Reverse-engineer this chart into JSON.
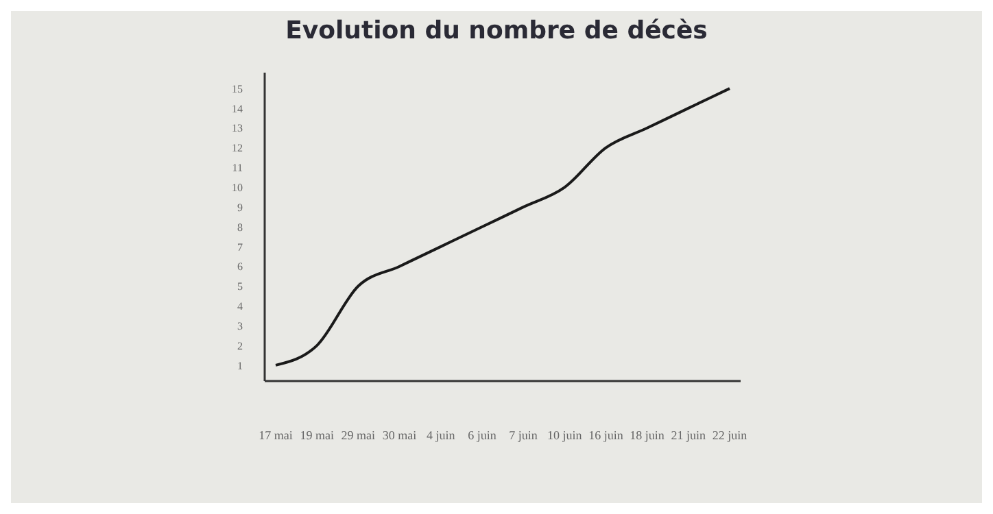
{
  "chart_data": {
    "type": "line",
    "title": "Evolution du nombre de décès",
    "categories": [
      "17 mai",
      "19 mai",
      "29 mai",
      "30 mai",
      "4 juin",
      "6 juin",
      "7 juin",
      "10 juin",
      "16 juin",
      "18 juin",
      "21 juin",
      "22 juin"
    ],
    "series": [
      {
        "color": "#1a1a1a",
        "values": [
          1,
          2,
          5,
          6,
          7,
          8,
          9,
          10,
          12,
          13,
          14,
          15
        ]
      }
    ],
    "ylim": [
      0.2,
      15.8
    ],
    "yticks": [
      1,
      2,
      3,
      4,
      5,
      6,
      7,
      8,
      9,
      10,
      11,
      12,
      13,
      14,
      15
    ],
    "grid": false,
    "legend": false,
    "marker": "none",
    "line_style": "solid"
  }
}
